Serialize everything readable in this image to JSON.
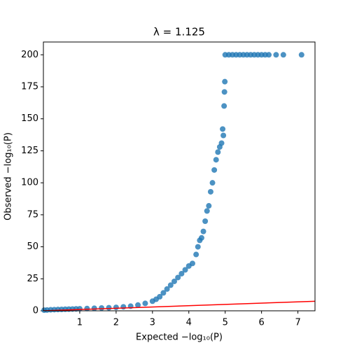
{
  "chart_data": {
    "type": "scatter",
    "title": "λ = 1.125",
    "x_label": "Expected −log₁₀(P)",
    "y_label": "Observed −log₁₀(P)",
    "xlim": [
      0,
      7.47
    ],
    "ylim": [
      0,
      210
    ],
    "xticks": [
      1,
      2,
      3,
      4,
      5,
      6,
      7
    ],
    "yticks": [
      0,
      25,
      50,
      75,
      100,
      125,
      150,
      175,
      200
    ],
    "grid": false,
    "series": [
      {
        "type": "scatter",
        "color": "#1f77b4",
        "x": [
          0.02,
          0.1,
          0.2,
          0.3,
          0.4,
          0.5,
          0.6,
          0.7,
          0.8,
          0.9,
          1.0,
          1.2,
          1.4,
          1.6,
          1.8,
          2.0,
          2.2,
          2.4,
          2.6,
          2.8,
          3.0,
          3.1,
          3.2,
          3.3,
          3.4,
          3.5,
          3.6,
          3.7,
          3.8,
          3.9,
          4.0,
          4.1,
          4.2,
          4.25,
          4.3,
          4.35,
          4.4,
          4.45,
          4.5,
          4.55,
          4.6,
          4.65,
          4.7,
          4.75,
          4.8,
          4.85,
          4.9,
          4.93,
          4.95,
          4.97,
          4.98,
          4.99,
          5.0,
          5.1,
          5.2,
          5.3,
          5.4,
          5.5,
          5.6,
          5.7,
          5.8,
          5.9,
          6.0,
          6.1,
          6.2,
          6.4,
          6.6,
          7.1
        ],
        "values": [
          0.5,
          0.6,
          0.8,
          0.9,
          1.0,
          1.1,
          1.2,
          1.3,
          1.4,
          1.5,
          1.6,
          1.8,
          2.0,
          2.2,
          2.4,
          2.7,
          3.1,
          3.6,
          4.5,
          5.8,
          7.5,
          9,
          11,
          14,
          17,
          20,
          23,
          26,
          29,
          32,
          35,
          37,
          44,
          50,
          55,
          57,
          62,
          70,
          78,
          82,
          93,
          100,
          110,
          118,
          124,
          128,
          131,
          142,
          137,
          160,
          171,
          179,
          200,
          200,
          200,
          200,
          200,
          200,
          200,
          200,
          200,
          200,
          200,
          200,
          200,
          200,
          200,
          200
        ]
      },
      {
        "type": "line",
        "color": "#ff0000",
        "x": [
          0,
          7.47
        ],
        "values": [
          0,
          7.47
        ]
      }
    ]
  }
}
